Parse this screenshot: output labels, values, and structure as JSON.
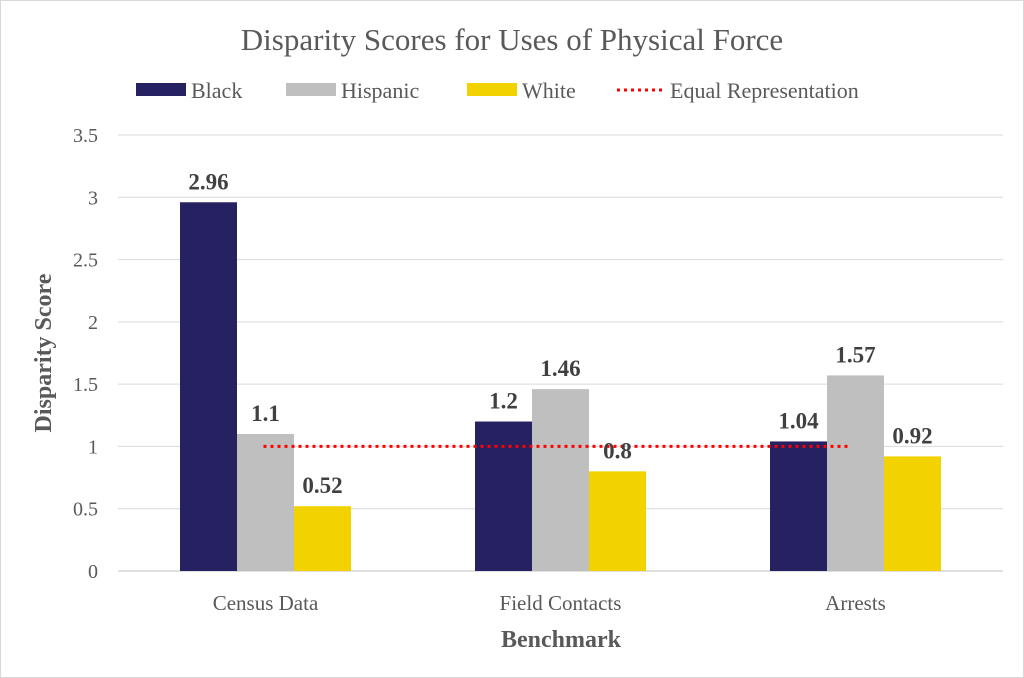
{
  "chart_data": {
    "type": "bar",
    "title": "Disparity Scores for Uses of Physical Force",
    "xlabel": "Benchmark",
    "ylabel": "Disparity Score",
    "categories": [
      "Census Data",
      "Field Contacts",
      "Arrests"
    ],
    "series": [
      {
        "name": "Black",
        "values": [
          2.96,
          1.2,
          1.04
        ],
        "color": "#262262"
      },
      {
        "name": "Hispanic",
        "values": [
          1.1,
          1.46,
          1.57
        ],
        "color": "#BFBFBF"
      },
      {
        "name": "White",
        "values": [
          0.52,
          0.8,
          0.92
        ],
        "color": "#F2D200"
      }
    ],
    "reference_line": {
      "name": "Equal Representation",
      "value": 1,
      "color": "#FF0000",
      "style": "dotted"
    },
    "ylim": [
      0,
      3.5
    ],
    "yticks": [
      "0",
      "0.5",
      "1",
      "1.5",
      "2",
      "2.5",
      "3",
      "3.5"
    ],
    "grid": true,
    "legend_position": "top",
    "data_labels": true
  }
}
